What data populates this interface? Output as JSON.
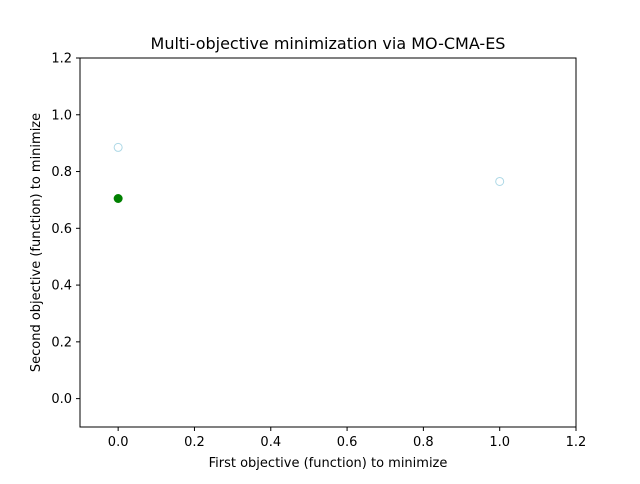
{
  "chart_data": {
    "type": "scatter",
    "title": "Multi-objective minimization via MO-CMA-ES",
    "xlabel": "First objective (function) to minimize",
    "ylabel": "Second objective (function) to minimize",
    "xlim": [
      -0.1,
      1.2
    ],
    "ylim": [
      -0.1,
      1.2
    ],
    "xticks": [
      0.0,
      0.2,
      0.4,
      0.6,
      0.8,
      1.0,
      1.2
    ],
    "yticks": [
      0.0,
      0.2,
      0.4,
      0.6,
      0.8,
      1.0,
      1.2
    ],
    "xtick_labels": [
      "0.0",
      "0.2",
      "0.4",
      "0.6",
      "0.8",
      "1.0",
      "1.2"
    ],
    "ytick_labels": [
      "0.0",
      "0.2",
      "0.4",
      "0.6",
      "0.8",
      "1.0",
      "1.2"
    ],
    "grid": false,
    "series": [
      {
        "marker": "hollow-circle",
        "color": "#add8e6",
        "points": [
          {
            "x": 0.0,
            "y": 0.885
          },
          {
            "x": 1.0,
            "y": 0.765
          }
        ]
      },
      {
        "marker": "filled-circle",
        "color": "#008000",
        "points": [
          {
            "x": 0.0,
            "y": 0.705
          }
        ]
      }
    ]
  }
}
